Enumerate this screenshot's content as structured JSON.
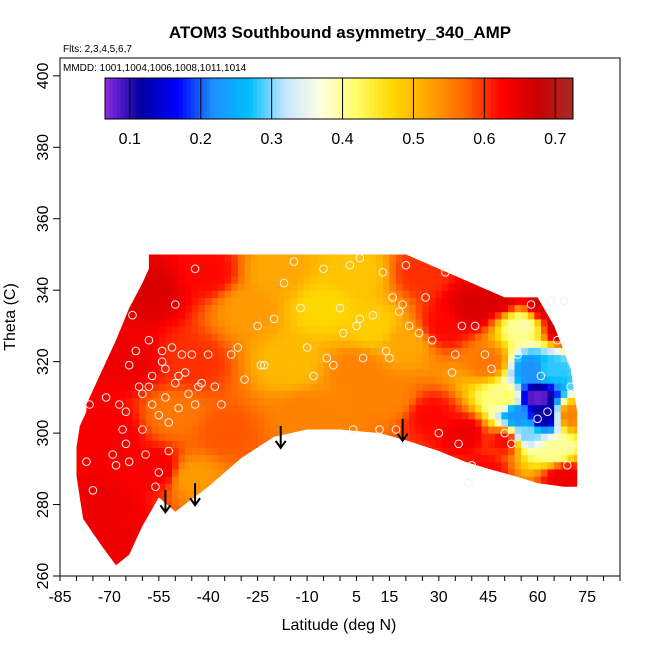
{
  "chart_data": {
    "type": "heatmap",
    "title": "ATOM3 Southbound asymmetry_340_AMP",
    "subtitle_flights": "Flts: 2,3,4,5,6,7",
    "subtitle_dates": "MMDD: 1001,1004,1006,1008,1011,1014",
    "xlabel": "Latitude (deg N)",
    "ylabel": "Theta (C)",
    "xlim": [
      -85,
      85
    ],
    "ylim": [
      260,
      405
    ],
    "x_ticks": [
      -85,
      -70,
      -55,
      -40,
      -25,
      -10,
      5,
      15,
      30,
      45,
      60,
      75
    ],
    "x_minor_step": 5,
    "y_ticks": [
      260,
      280,
      300,
      320,
      340,
      360,
      380,
      400
    ],
    "colorbar": {
      "range": [
        0.065,
        0.725
      ],
      "ticks": [
        0.1,
        0.2,
        0.3,
        0.4,
        0.5,
        0.6,
        0.7
      ],
      "colors": [
        "#8a2be2",
        "#0000a0",
        "#0000ff",
        "#1e90ff",
        "#00bfff",
        "#c6e6ff",
        "#ffffe0",
        "#ffff66",
        "#ffd700",
        "#ffa500",
        "#ff6600",
        "#ff0000",
        "#cc0000",
        "#a52a2a"
      ]
    },
    "field_boundary": {
      "lat": [
        -77,
        -77,
        -72,
        -68,
        -64,
        -60,
        -58,
        -58,
        -56,
        -52,
        -50,
        -47,
        -43,
        -38,
        -32,
        -26,
        -20,
        -14,
        -9,
        -4,
        0,
        5,
        10,
        15,
        20,
        25,
        30,
        35,
        40,
        45,
        50,
        55,
        60,
        65,
        70,
        72,
        72,
        68,
        60,
        53,
        45,
        38,
        30,
        20,
        12,
        0,
        -10,
        -20,
        -30,
        -40,
        -50,
        -55,
        -60,
        -64,
        -68,
        -72,
        -75,
        -78,
        -79,
        -80,
        -80,
        -79,
        -77
      ],
      "theta": [
        306,
        308,
        318,
        326,
        335,
        342,
        346,
        350,
        350,
        350,
        350,
        350,
        350,
        350,
        350,
        350,
        350,
        350,
        350,
        350,
        350,
        350,
        350,
        350,
        350,
        348,
        346,
        344,
        342,
        340,
        338,
        338,
        338,
        330,
        318,
        306,
        285,
        285,
        286,
        288,
        290,
        292,
        295,
        298,
        300,
        301,
        301,
        299,
        293,
        285,
        278,
        282,
        274,
        266,
        263,
        268,
        272,
        276,
        282,
        288,
        296,
        302,
        306
      ]
    },
    "field_anchors": [
      {
        "lat": -78,
        "theta": 300,
        "value": 0.63
      },
      {
        "lat": -72,
        "theta": 280,
        "value": 0.64
      },
      {
        "lat": -68,
        "theta": 268,
        "value": 0.64
      },
      {
        "lat": -70,
        "theta": 300,
        "value": 0.63
      },
      {
        "lat": -65,
        "theta": 320,
        "value": 0.64
      },
      {
        "lat": -58,
        "theta": 340,
        "value": 0.66
      },
      {
        "lat": -55,
        "theta": 290,
        "value": 0.63
      },
      {
        "lat": -50,
        "theta": 305,
        "value": 0.56
      },
      {
        "lat": -45,
        "theta": 288,
        "value": 0.53
      },
      {
        "lat": -45,
        "theta": 320,
        "value": 0.6
      },
      {
        "lat": -40,
        "theta": 345,
        "value": 0.62
      },
      {
        "lat": -35,
        "theta": 300,
        "value": 0.58
      },
      {
        "lat": -28,
        "theta": 335,
        "value": 0.53
      },
      {
        "lat": -20,
        "theta": 345,
        "value": 0.52
      },
      {
        "lat": -15,
        "theta": 320,
        "value": 0.5
      },
      {
        "lat": -10,
        "theta": 305,
        "value": 0.55
      },
      {
        "lat": -5,
        "theta": 335,
        "value": 0.47
      },
      {
        "lat": 5,
        "theta": 345,
        "value": 0.49
      },
      {
        "lat": 5,
        "theta": 318,
        "value": 0.55
      },
      {
        "lat": 10,
        "theta": 330,
        "value": 0.48
      },
      {
        "lat": 15,
        "theta": 310,
        "value": 0.55
      },
      {
        "lat": 20,
        "theta": 325,
        "value": 0.52
      },
      {
        "lat": 25,
        "theta": 345,
        "value": 0.6
      },
      {
        "lat": 28,
        "theta": 305,
        "value": 0.62
      },
      {
        "lat": 32,
        "theta": 330,
        "value": 0.62
      },
      {
        "lat": 38,
        "theta": 300,
        "value": 0.64
      },
      {
        "lat": 40,
        "theta": 335,
        "value": 0.66
      },
      {
        "lat": 44,
        "theta": 290,
        "value": 0.62
      },
      {
        "lat": 45,
        "theta": 320,
        "value": 0.56
      },
      {
        "lat": 48,
        "theta": 338,
        "value": 0.66
      },
      {
        "lat": 50,
        "theta": 310,
        "value": 0.42
      },
      {
        "lat": 54,
        "theta": 305,
        "value": 0.22
      },
      {
        "lat": 56,
        "theta": 300,
        "value": 0.3
      },
      {
        "lat": 58,
        "theta": 318,
        "value": 0.22
      },
      {
        "lat": 60,
        "theta": 310,
        "value": 0.08
      },
      {
        "lat": 62,
        "theta": 305,
        "value": 0.11
      },
      {
        "lat": 64,
        "theta": 318,
        "value": 0.28
      },
      {
        "lat": 65,
        "theta": 295,
        "value": 0.4
      },
      {
        "lat": 68,
        "theta": 288,
        "value": 0.64
      },
      {
        "lat": 70,
        "theta": 305,
        "value": 0.55
      },
      {
        "lat": 68,
        "theta": 330,
        "value": 0.68
      },
      {
        "lat": 62,
        "theta": 336,
        "value": 0.66
      },
      {
        "lat": 55,
        "theta": 330,
        "value": 0.4
      },
      {
        "lat": 50,
        "theta": 298,
        "value": 0.62
      }
    ],
    "observations": [
      {
        "lat": -77,
        "theta": 292
      },
      {
        "lat": -76,
        "theta": 308
      },
      {
        "lat": -75,
        "theta": 284
      },
      {
        "lat": -71,
        "theta": 310
      },
      {
        "lat": -69,
        "theta": 294
      },
      {
        "lat": -68,
        "theta": 291
      },
      {
        "lat": -67,
        "theta": 308
      },
      {
        "lat": -66,
        "theta": 301
      },
      {
        "lat": -65,
        "theta": 297
      },
      {
        "lat": -65,
        "theta": 306
      },
      {
        "lat": -64,
        "theta": 292
      },
      {
        "lat": -64,
        "theta": 319
      },
      {
        "lat": -63,
        "theta": 333
      },
      {
        "lat": -62,
        "theta": 341
      },
      {
        "lat": -62,
        "theta": 323
      },
      {
        "lat": -61,
        "theta": 313
      },
      {
        "lat": -60,
        "theta": 311
      },
      {
        "lat": -60,
        "theta": 301
      },
      {
        "lat": -59,
        "theta": 294
      },
      {
        "lat": -58,
        "theta": 326
      },
      {
        "lat": -58,
        "theta": 313
      },
      {
        "lat": -57,
        "theta": 308
      },
      {
        "lat": -57,
        "theta": 316
      },
      {
        "lat": -56,
        "theta": 285
      },
      {
        "lat": -55,
        "theta": 289
      },
      {
        "lat": -55,
        "theta": 305
      },
      {
        "lat": -54,
        "theta": 320
      },
      {
        "lat": -54,
        "theta": 323
      },
      {
        "lat": -53,
        "theta": 318
      },
      {
        "lat": -53,
        "theta": 310
      },
      {
        "lat": -52,
        "theta": 303
      },
      {
        "lat": -52,
        "theta": 295
      },
      {
        "lat": -51,
        "theta": 324
      },
      {
        "lat": -50,
        "theta": 314
      },
      {
        "lat": -50,
        "theta": 336
      },
      {
        "lat": -49,
        "theta": 307
      },
      {
        "lat": -49,
        "theta": 316
      },
      {
        "lat": -48,
        "theta": 322
      },
      {
        "lat": -47,
        "theta": 317
      },
      {
        "lat": -46,
        "theta": 311
      },
      {
        "lat": -45,
        "theta": 322
      },
      {
        "lat": -44,
        "theta": 308
      },
      {
        "lat": -44,
        "theta": 346
      },
      {
        "lat": -43,
        "theta": 313
      },
      {
        "lat": -42,
        "theta": 314
      },
      {
        "lat": -40,
        "theta": 322
      },
      {
        "lat": -38,
        "theta": 313
      },
      {
        "lat": -36,
        "theta": 308
      },
      {
        "lat": -33,
        "theta": 322
      },
      {
        "lat": -31,
        "theta": 324
      },
      {
        "lat": -29,
        "theta": 315
      },
      {
        "lat": -27,
        "theta": 293
      },
      {
        "lat": -25,
        "theta": 330
      },
      {
        "lat": -24,
        "theta": 319
      },
      {
        "lat": -23,
        "theta": 319
      },
      {
        "lat": -20,
        "theta": 332
      },
      {
        "lat": -17,
        "theta": 342
      },
      {
        "lat": -14,
        "theta": 348
      },
      {
        "lat": -12,
        "theta": 335
      },
      {
        "lat": -10,
        "theta": 324
      },
      {
        "lat": -8,
        "theta": 316
      },
      {
        "lat": -5,
        "theta": 346
      },
      {
        "lat": -4,
        "theta": 321
      },
      {
        "lat": -2,
        "theta": 319
      },
      {
        "lat": 0,
        "theta": 335
      },
      {
        "lat": 1,
        "theta": 328
      },
      {
        "lat": 3,
        "theta": 347
      },
      {
        "lat": 4,
        "theta": 301
      },
      {
        "lat": 5,
        "theta": 330
      },
      {
        "lat": 6,
        "theta": 332
      },
      {
        "lat": 6,
        "theta": 349
      },
      {
        "lat": 7,
        "theta": 321
      },
      {
        "lat": 10,
        "theta": 333
      },
      {
        "lat": 12,
        "theta": 301
      },
      {
        "lat": 13,
        "theta": 345
      },
      {
        "lat": 14,
        "theta": 323
      },
      {
        "lat": 15,
        "theta": 321
      },
      {
        "lat": 16,
        "theta": 338
      },
      {
        "lat": 17,
        "theta": 301
      },
      {
        "lat": 18,
        "theta": 334
      },
      {
        "lat": 19,
        "theta": 336
      },
      {
        "lat": 20,
        "theta": 347
      },
      {
        "lat": 21,
        "theta": 330
      },
      {
        "lat": 24,
        "theta": 328
      },
      {
        "lat": 26,
        "theta": 338
      },
      {
        "lat": 28,
        "theta": 326
      },
      {
        "lat": 30,
        "theta": 300
      },
      {
        "lat": 32,
        "theta": 345
      },
      {
        "lat": 34,
        "theta": 317
      },
      {
        "lat": 35,
        "theta": 322
      },
      {
        "lat": 36,
        "theta": 297
      },
      {
        "lat": 37,
        "theta": 330
      },
      {
        "lat": 39,
        "theta": 286
      },
      {
        "lat": 40,
        "theta": 291
      },
      {
        "lat": 41,
        "theta": 330
      },
      {
        "lat": 44,
        "theta": 322
      },
      {
        "lat": 46,
        "theta": 318
      },
      {
        "lat": 48,
        "theta": 311
      },
      {
        "lat": 50,
        "theta": 300
      },
      {
        "lat": 52,
        "theta": 297
      },
      {
        "lat": 54,
        "theta": 322
      },
      {
        "lat": 56,
        "theta": 330
      },
      {
        "lat": 58,
        "theta": 336
      },
      {
        "lat": 60,
        "theta": 304
      },
      {
        "lat": 61,
        "theta": 316
      },
      {
        "lat": 63,
        "theta": 306
      },
      {
        "lat": 64,
        "theta": 337
      },
      {
        "lat": 66,
        "theta": 326
      },
      {
        "lat": 68,
        "theta": 337
      },
      {
        "lat": 69,
        "theta": 291
      },
      {
        "lat": 70,
        "theta": 313
      },
      {
        "lat": 70,
        "theta": 296
      }
    ],
    "arrows": [
      {
        "lat": -53,
        "theta": 284
      },
      {
        "lat": -44,
        "theta": 286
      },
      {
        "lat": -18,
        "theta": 302
      },
      {
        "lat": 19,
        "theta": 304
      }
    ]
  }
}
